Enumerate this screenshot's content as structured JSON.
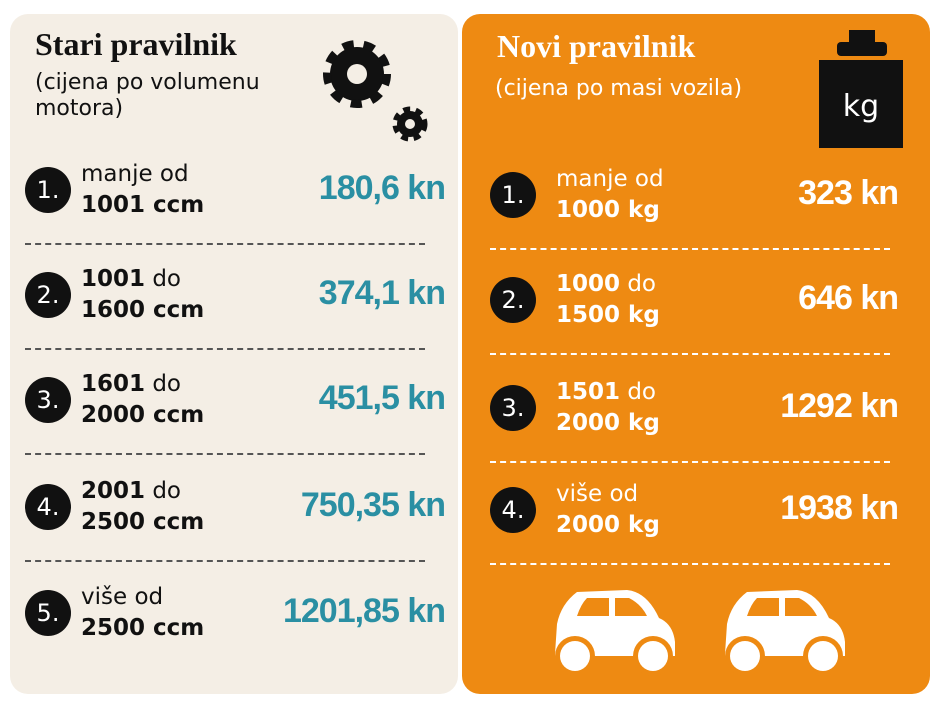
{
  "left": {
    "title": "Stari pravilnik",
    "subtitle": "(cijena po volumenu motora)",
    "items": [
      {
        "number": "1.",
        "word": "manje od",
        "to": "1001 ccm",
        "price": "180,6 kn"
      },
      {
        "number": "2.",
        "from": "1001",
        "word": "do",
        "to": "1600 ccm",
        "price": "374,1 kn"
      },
      {
        "number": "3.",
        "from": "1601",
        "word": "do",
        "to": "2000 ccm",
        "price": "451,5 kn"
      },
      {
        "number": "4.",
        "from": "2001",
        "word": "do",
        "to": "2500 ccm",
        "price": "750,35 kn"
      },
      {
        "number": "5.",
        "word": "više od",
        "to": "2500 ccm",
        "price": "1201,85 kn"
      }
    ]
  },
  "right": {
    "title": "Novi pravilnik",
    "subtitle": "(cijena po masi vozila)",
    "icon_label": "kg",
    "items": [
      {
        "number": "1.",
        "word": "manje od",
        "to": "1000 kg",
        "price": "323 kn"
      },
      {
        "number": "2.",
        "from": "1000",
        "word": "do",
        "to": "1500 kg",
        "price": "646 kn"
      },
      {
        "number": "3.",
        "from": "1501",
        "word": "do",
        "to": "2000 kg",
        "price": "1292 kn"
      },
      {
        "number": "4.",
        "word": "više od",
        "to": "2000 kg",
        "price": "1938 kn"
      }
    ]
  }
}
